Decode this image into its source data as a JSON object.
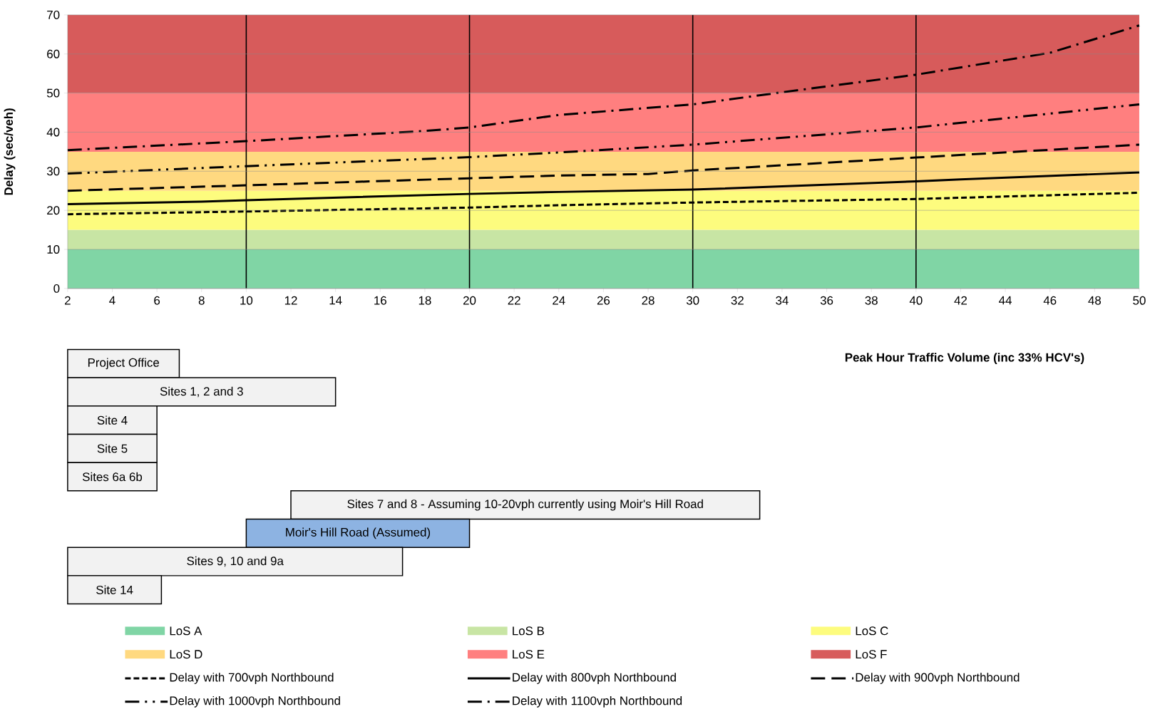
{
  "chart_data": [
    {
      "type": "line",
      "ylabel": "Delay (sec/veh)",
      "xlabel": "Peak Hour Traffic Volume (inc 33% HCV's)",
      "xlim": [
        2,
        50
      ],
      "ylim": [
        0,
        70
      ],
      "xticks": [
        2,
        4,
        6,
        8,
        10,
        12,
        14,
        16,
        18,
        20,
        22,
        24,
        26,
        28,
        30,
        32,
        34,
        36,
        38,
        40,
        42,
        44,
        46,
        48,
        50
      ],
      "yticks": [
        0,
        10,
        20,
        30,
        40,
        50,
        60,
        70
      ],
      "grid": "y",
      "legend": "bottom",
      "bands": [
        {
          "axis": "y",
          "from": 0,
          "to": 10,
          "label": "LoS A",
          "color": "#80d5a5"
        },
        {
          "axis": "y",
          "from": 10,
          "to": 15,
          "label": "LoS B",
          "color": "#c8e5a4"
        },
        {
          "axis": "y",
          "from": 15,
          "to": 25,
          "label": "LoS C",
          "color": "#fdfc7e"
        },
        {
          "axis": "y",
          "from": 25,
          "to": 35,
          "label": "LoS D",
          "color": "#ffd980"
        },
        {
          "axis": "y",
          "from": 35,
          "to": 50,
          "label": "LoS E",
          "color": "#ff7f7f"
        },
        {
          "axis": "y",
          "from": 50,
          "to": 70,
          "label": "LoS F",
          "color": "#d75b5b"
        }
      ],
      "ref_lines": [
        {
          "axis": "x",
          "value": 10
        },
        {
          "axis": "x",
          "value": 20
        },
        {
          "axis": "x",
          "value": 30
        },
        {
          "axis": "x",
          "value": 40
        }
      ],
      "series": [
        {
          "name": "Delay with 700vph Northbound",
          "color": "#000000",
          "line_style": "dashed",
          "x": [
            2,
            10,
            20,
            24,
            30,
            40,
            50
          ],
          "values": [
            19.0,
            19.7,
            20.7,
            21.3,
            22.0,
            22.9,
            24.5
          ]
        },
        {
          "name": "Delay with 800vph Northbound",
          "color": "#000000",
          "line_style": "solid",
          "x": [
            2,
            8,
            10,
            20,
            24,
            30,
            40,
            42,
            50
          ],
          "values": [
            21.6,
            22.2,
            22.6,
            24.2,
            24.7,
            25.3,
            27.4,
            27.9,
            29.7
          ]
        },
        {
          "name": "Delay with 900vph Northbound",
          "color": "#000000",
          "line_style": "long dash",
          "x": [
            2,
            10,
            20,
            24,
            28,
            30,
            40,
            50
          ],
          "values": [
            25.0,
            26.4,
            28.2,
            28.9,
            29.3,
            30.2,
            33.5,
            36.8
          ]
        },
        {
          "name": "Delay with 1000vph Northbound",
          "color": "#000000",
          "line_style": "long dash dot dot",
          "x": [
            2,
            10,
            20,
            24,
            30,
            40,
            50
          ],
          "values": [
            29.4,
            31.3,
            33.6,
            34.8,
            36.8,
            41.2,
            47.1
          ]
        },
        {
          "name": "Delay with 1100vph Northbound",
          "color": "#000000",
          "line_style": "long dash dot",
          "x": [
            2,
            10,
            18,
            20,
            24,
            30,
            34,
            40,
            46,
            50
          ],
          "values": [
            35.4,
            37.7,
            40.3,
            41.2,
            44.4,
            47.1,
            50.2,
            54.7,
            60.3,
            67.3
          ]
        }
      ]
    },
    {
      "type": "bar",
      "orientation": "horizontal",
      "xlim": [
        2,
        50
      ],
      "tick_labels": false,
      "categories": [
        "Project Office",
        "Sites 1, 2 and 3",
        "Site 4",
        "Site 5",
        "Sites 6a 6b",
        "Sites 7 and 8 - Assuming 10-20vph currently using Moir's Hill Road",
        "Moir's Hill Road (Assumed)",
        "Sites 9, 10 and 9a",
        "Site 14"
      ],
      "base": [
        2,
        2,
        2,
        2,
        2,
        12,
        10,
        2,
        2
      ],
      "values": [
        5,
        12,
        4,
        4,
        4,
        21,
        10,
        15,
        4.2
      ],
      "colors": [
        "#f2f2f2",
        "#f2f2f2",
        "#f2f2f2",
        "#f2f2f2",
        "#f2f2f2",
        "#f2f2f2",
        "#8db3e2",
        "#f2f2f2",
        "#f2f2f2"
      ]
    }
  ]
}
